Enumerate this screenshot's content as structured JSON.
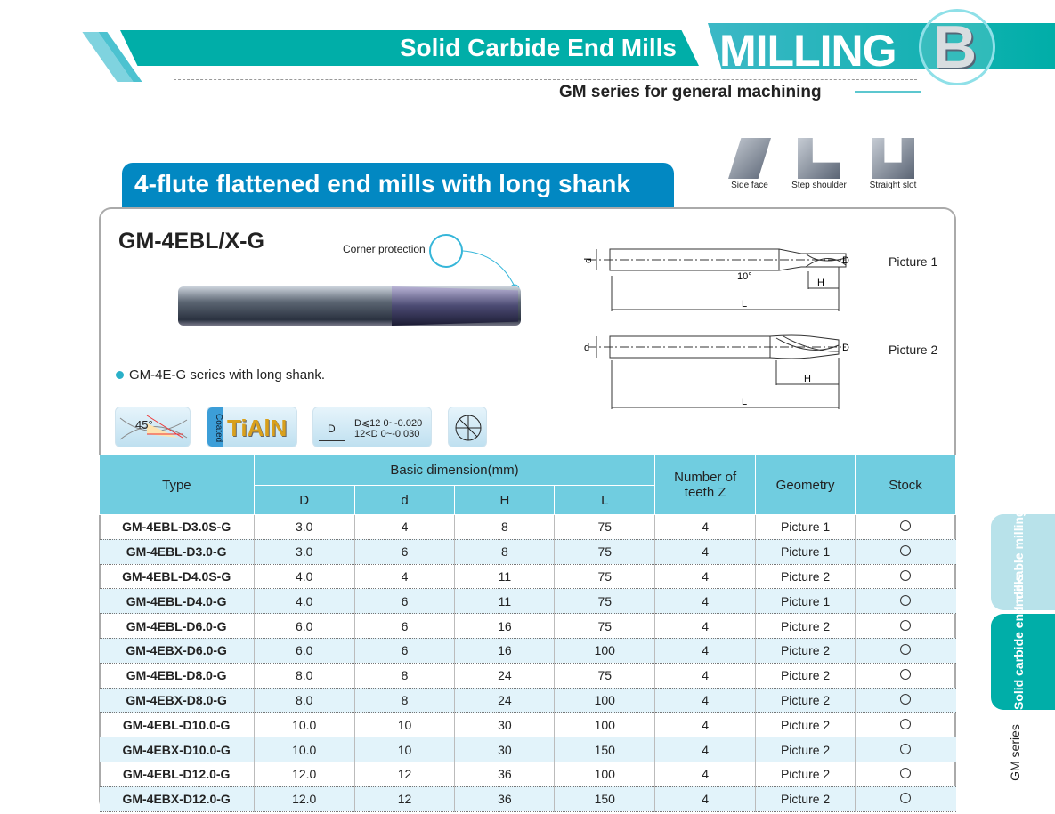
{
  "header": {
    "category": "Solid Carbide End Mills",
    "section": "MILLING",
    "section_letter": "B",
    "series": "GM series for general machining"
  },
  "section_title": "4-flute flattened end mills with long shank",
  "applications": [
    {
      "icon": "side-face-icon",
      "label": "Side face"
    },
    {
      "icon": "step-shoulder-icon",
      "label": "Step shoulder"
    },
    {
      "icon": "straight-slot-icon",
      "label": "Straight slot"
    }
  ],
  "product": {
    "model": "GM-4EBL/X-G",
    "corner_label": "Corner protection",
    "note": "GM-4E-G series with long shank."
  },
  "features": {
    "helix": "45°",
    "coating_label": "Coated",
    "coating": "TiAlN",
    "tol_dim": "D",
    "tol_1": "D⩽12  0~-0.020",
    "tol_2": "12<D  0~-0.030"
  },
  "drawings": {
    "p1": "Picture 1",
    "p2": "Picture 2",
    "d": "d",
    "D": "D",
    "H": "H",
    "L": "L",
    "angle": "10°"
  },
  "table": {
    "headers": {
      "type": "Type",
      "basic": "Basic dimension(mm)",
      "D": "D",
      "d": "d",
      "H": "H",
      "L": "L",
      "teeth": "Number of teeth Z",
      "geometry": "Geometry",
      "stock": "Stock"
    },
    "rows": [
      [
        "GM-4EBL-D3.0S-G",
        "3.0",
        "4",
        "8",
        "75",
        "4",
        "Picture 1"
      ],
      [
        "GM-4EBL-D3.0-G",
        "3.0",
        "6",
        "8",
        "75",
        "4",
        "Picture 1"
      ],
      [
        "GM-4EBL-D4.0S-G",
        "4.0",
        "4",
        "11",
        "75",
        "4",
        "Picture 2"
      ],
      [
        "GM-4EBL-D4.0-G",
        "4.0",
        "6",
        "11",
        "75",
        "4",
        "Picture 1"
      ],
      [
        "GM-4EBL-D6.0-G",
        "6.0",
        "6",
        "16",
        "75",
        "4",
        "Picture 2"
      ],
      [
        "GM-4EBX-D6.0-G",
        "6.0",
        "6",
        "16",
        "100",
        "4",
        "Picture 2"
      ],
      [
        "GM-4EBL-D8.0-G",
        "8.0",
        "8",
        "24",
        "75",
        "4",
        "Picture 2"
      ],
      [
        "GM-4EBX-D8.0-G",
        "8.0",
        "8",
        "24",
        "100",
        "4",
        "Picture 2"
      ],
      [
        "GM-4EBL-D10.0-G",
        "10.0",
        "10",
        "30",
        "100",
        "4",
        "Picture 2"
      ],
      [
        "GM-4EBX-D10.0-G",
        "10.0",
        "10",
        "30",
        "150",
        "4",
        "Picture 2"
      ],
      [
        "GM-4EBL-D12.0-G",
        "12.0",
        "12",
        "36",
        "100",
        "4",
        "Picture 2"
      ],
      [
        "GM-4EBX-D12.0-G",
        "12.0",
        "12",
        "36",
        "150",
        "4",
        "Picture 2"
      ]
    ],
    "stock_symbol": "○"
  },
  "side_tabs": [
    {
      "label": "Indexable milling tools",
      "active": false
    },
    {
      "label": "Solid carbide end mills",
      "active": true
    }
  ],
  "side_series": "GM series",
  "colors": {
    "teal": "#00aea8",
    "blue": "#0288c2",
    "table_header": "#70cde0",
    "row_alt": "#e2f3fa"
  }
}
